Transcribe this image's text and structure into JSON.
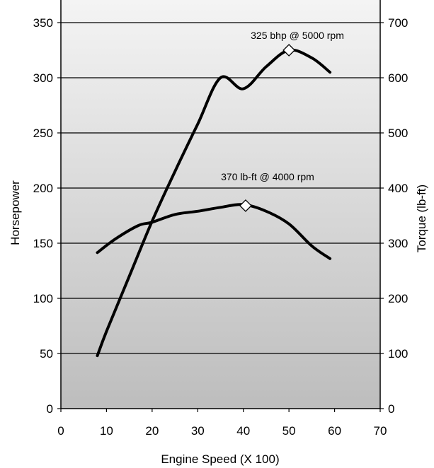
{
  "chart_data": {
    "type": "line",
    "title": "",
    "xlabel": "Engine Speed (X 100)",
    "ylabel": "Horsepower",
    "y2label": "Torque (lb-ft)",
    "xlim": [
      0,
      70
    ],
    "ylim": [
      0,
      350
    ],
    "y2lim": [
      0,
      700
    ],
    "x_ticks": [
      "0",
      "10",
      "20",
      "30",
      "40",
      "50",
      "60",
      "70"
    ],
    "y_ticks": [
      "0",
      "50",
      "100",
      "150",
      "200",
      "250",
      "300",
      "350"
    ],
    "y2_ticks": [
      "0",
      "100",
      "200",
      "300",
      "400",
      "500",
      "600",
      "700"
    ],
    "grid": "horizontal",
    "background": "vertical gradient, light gray to darker gray",
    "series": [
      {
        "axis": "left",
        "x": [
          8,
          10,
          15,
          20,
          25,
          30,
          35,
          40,
          45,
          50,
          55,
          59
        ],
        "values": [
          48,
          70,
          120,
          170,
          215,
          258,
          300,
          290,
          310,
          325,
          318,
          305
        ],
        "peak": {
          "x": 50,
          "y": 325
        },
        "peak_label": "325 bhp @ 5000 rpm"
      },
      {
        "axis": "right",
        "x": [
          8,
          12,
          17,
          20,
          25,
          30,
          35,
          40,
          45,
          50,
          55,
          59
        ],
        "values": [
          283,
          308,
          332,
          338,
          352,
          358,
          365,
          370,
          358,
          335,
          295,
          272
        ],
        "peak": {
          "x": 40.5,
          "y": 368
        },
        "peak_label": "370 lb-ft @ 4000 rpm"
      }
    ]
  }
}
